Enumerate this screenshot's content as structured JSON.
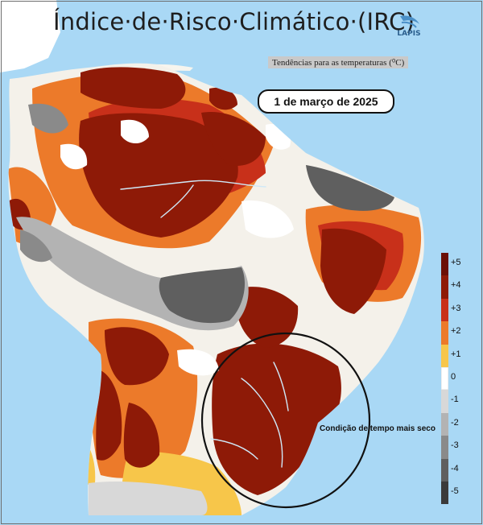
{
  "title": "Índice·de·Risco·Climático·(IRC)",
  "logo_text": "LAPIS",
  "subtitle": "Tendências para as temperaturas (⁰C)",
  "date_label": "1 de março de 2025",
  "annotation": "Condição de tempo mais seco",
  "colors": {
    "ocean": "#a9d8f5",
    "land_white": "#f7f5ee",
    "plus5": "#6b0f05",
    "plus4": "#8e1a07",
    "plus3": "#c8301a",
    "plus2": "#ec7a2a",
    "plus1": "#f7c64a",
    "zero": "#ffffff",
    "minus1": "#d8d8d8",
    "minus2": "#b3b3b3",
    "minus3": "#8a8a8a",
    "minus4": "#5f5f5f",
    "minus5": "#3a3a3a"
  },
  "legend": {
    "items": [
      {
        "label": "+5",
        "color": "#6b0f05"
      },
      {
        "label": "+4",
        "color": "#8e1a07"
      },
      {
        "label": "+3",
        "color": "#c8301a"
      },
      {
        "label": "+2",
        "color": "#ec7a2a"
      },
      {
        "label": "+1",
        "color": "#f7c64a"
      },
      {
        "label": "0",
        "color": "#ffffff"
      },
      {
        "label": "-1",
        "color": "#d8d8d8"
      },
      {
        "label": "-2",
        "color": "#b3b3b3"
      },
      {
        "label": "-3",
        "color": "#8a8a8a"
      },
      {
        "label": "-4",
        "color": "#5f5f5f"
      },
      {
        "label": "-5",
        "color": "#3a3a3a"
      }
    ]
  }
}
